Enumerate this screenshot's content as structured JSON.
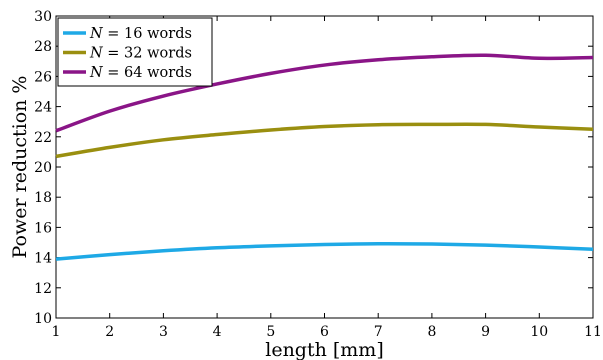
{
  "chart_data": {
    "type": "line",
    "xlabel": "length [mm]",
    "ylabel": "Power reduction %",
    "xlim": [
      1,
      11
    ],
    "ylim": [
      10,
      30
    ],
    "xticks": [
      1,
      2,
      3,
      4,
      5,
      6,
      7,
      8,
      9,
      10,
      11
    ],
    "yticks": [
      10,
      12,
      14,
      16,
      18,
      20,
      22,
      24,
      26,
      28,
      30
    ],
    "grid": false,
    "legend_position": "top-left",
    "series": [
      {
        "name": "N = 16 words",
        "legend_var": "N",
        "legend_rest": " = 16 words",
        "color": "#1ea9e6",
        "x": [
          1,
          2,
          3,
          4,
          5,
          6,
          7,
          8,
          9,
          10,
          11
        ],
        "y": [
          13.9,
          14.2,
          14.45,
          14.65,
          14.78,
          14.87,
          14.92,
          14.9,
          14.83,
          14.7,
          14.55
        ]
      },
      {
        "name": "N = 32 words",
        "legend_var": "N",
        "legend_rest": " = 32 words",
        "color": "#9a8f10",
        "x": [
          1,
          2,
          3,
          4,
          5,
          6,
          7,
          8,
          9,
          10,
          11
        ],
        "y": [
          20.7,
          21.3,
          21.8,
          22.15,
          22.45,
          22.68,
          22.8,
          22.82,
          22.82,
          22.65,
          22.5
        ]
      },
      {
        "name": "N = 64 words",
        "legend_var": "N",
        "legend_rest": " = 64 words",
        "color": "#8a1587",
        "x": [
          1,
          2,
          3,
          4,
          5,
          6,
          7,
          8,
          9,
          10,
          11
        ],
        "y": [
          22.4,
          23.7,
          24.7,
          25.5,
          26.2,
          26.75,
          27.1,
          27.3,
          27.4,
          27.2,
          27.25
        ]
      }
    ]
  }
}
